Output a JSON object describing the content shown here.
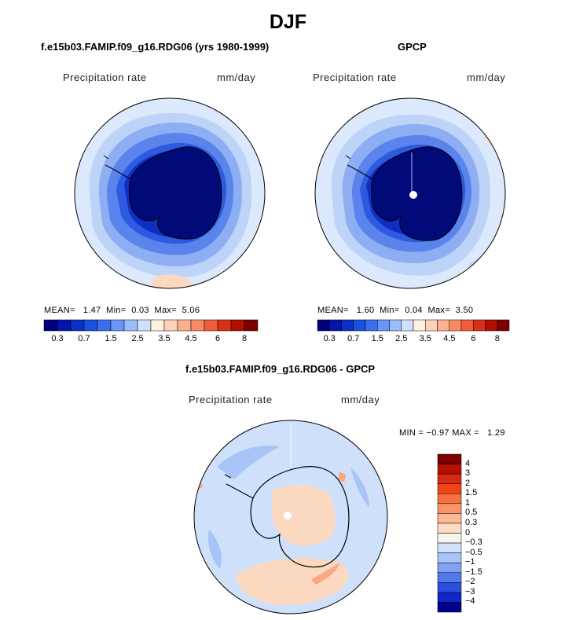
{
  "page": {
    "title": "DJF"
  },
  "panels": [
    {
      "id": "model",
      "title": "f.e15b03.FAMIP.f09_g16.RDG06 (yrs 1980-1999)",
      "field_label": "Precipitation rate",
      "units": "mm/day",
      "stats": {
        "mean_label": "MEAN=",
        "mean": "1.47",
        "min_label": "Min=",
        "min": "0.03",
        "max_label": "Max=",
        "max": "5.06"
      }
    },
    {
      "id": "obs",
      "title": "GPCP",
      "field_label": "Precipitation rate",
      "units": "mm/day",
      "stats": {
        "mean_label": "MEAN=",
        "mean": "1.60",
        "min_label": "Min=",
        "min": "0.04",
        "max_label": "Max=",
        "max": "3.50"
      }
    },
    {
      "id": "diff",
      "title": "f.e15b03.FAMIP.f09_g16.RDG06 - GPCP",
      "field_label": "Precipitation rate",
      "units": "mm/day",
      "stats": {
        "min_label": "MIN =",
        "min": "−0.97",
        "max_label": "MAX =",
        "max": "1.29"
      }
    }
  ],
  "colorbar_abs": {
    "colors": [
      "#00007f",
      "#0016a8",
      "#0a32c8",
      "#1a50e0",
      "#3a6ef0",
      "#6a94f5",
      "#9bbcfa",
      "#cfe0fd",
      "#fff0e0",
      "#fcd2b8",
      "#fbb090",
      "#f88a64",
      "#f05c3a",
      "#d83018",
      "#b01000",
      "#7f0000"
    ],
    "ticks": [
      {
        "label": "0.3",
        "index": 1
      },
      {
        "label": "0.7",
        "index": 3
      },
      {
        "label": "1.5",
        "index": 5
      },
      {
        "label": "2.5",
        "index": 7
      },
      {
        "label": "3.5",
        "index": 9
      },
      {
        "label": "4.5",
        "index": 11
      },
      {
        "label": "6",
        "index": 13
      },
      {
        "label": "8",
        "index": 15
      }
    ]
  },
  "colorbar_diff": {
    "colors": [
      "#7f0000",
      "#b51000",
      "#d82a10",
      "#f04418",
      "#f87040",
      "#fc9468",
      "#fdb894",
      "#fedcc4",
      "#f8f4ee",
      "#d2e2fc",
      "#a9c4f8",
      "#7ea2f4",
      "#5278ec",
      "#2a50e0",
      "#1028c8",
      "#00008f"
    ],
    "labels": [
      "4",
      "3",
      "2",
      "1.5",
      "1",
      "0.5",
      "0.3",
      "0",
      "−0.3",
      "−0.5",
      "−1",
      "−1.5",
      "−2",
      "−3",
      "−4"
    ]
  },
  "map_colors": {
    "ocean_outer": "#dce8fb",
    "ring1": "#bdd3f8",
    "ring2": "#8eaef3",
    "ring3": "#5a84ec",
    "ring4": "#2e5ae0",
    "ring5": "#0f2ec4",
    "continent": "#000a78",
    "diff_base": "#cfe0fa",
    "diff_pos": "#fbd9c0",
    "diff_pos2": "#f8a880",
    "diff_neg": "#a8c4f6",
    "pole_mark": "#ffffff"
  }
}
